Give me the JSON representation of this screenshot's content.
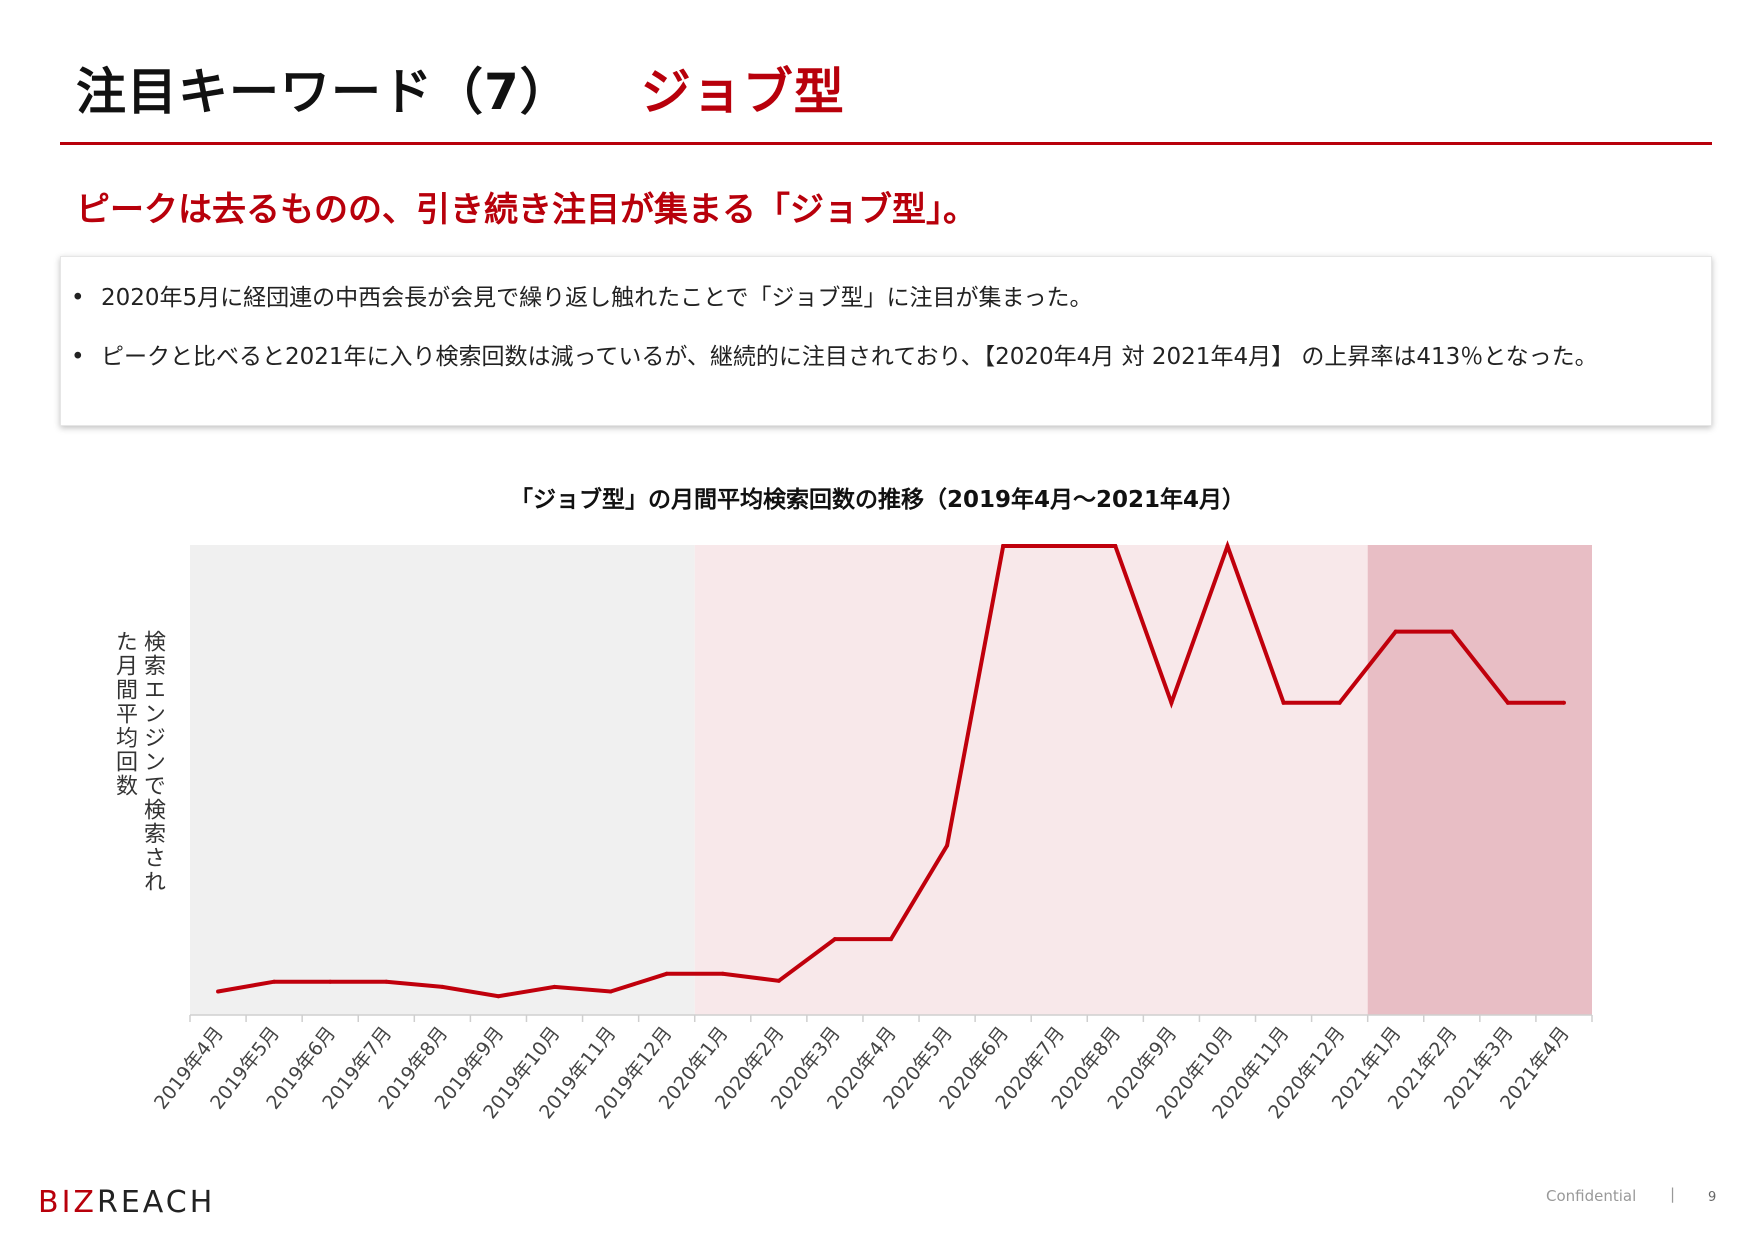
{
  "header": {
    "title": "注目キーワード（7）",
    "keyword": "ジョブ型",
    "subtitle": "ピークは去るものの、引き続き注目が集まる「ジョブ型」。"
  },
  "bullets": [
    "2020年5月に経団連の中西会長が会見で繰り返し触れたことで「ジョブ型」に注目が集まった。",
    "ピークと比べると2021年に入り検索回数は減っているが、継続的に注目されており、【2020年4月 対 2021年4月】 の上昇率は413％となった。"
  ],
  "chart_data": {
    "type": "line",
    "title": "「ジョブ型」の月間平均検索回数の推移（2019年4月〜2021年4月）",
    "ylabel": "検索エンジンで検索された月間平均回数",
    "xlabel": "",
    "categories": [
      "2019年4月",
      "2019年5月",
      "2019年6月",
      "2019年7月",
      "2019年8月",
      "2019年9月",
      "2019年10月",
      "2019年11月",
      "2019年12月",
      "2020年1月",
      "2020年2月",
      "2020年3月",
      "2020年4月",
      "2020年5月",
      "2020年6月",
      "2020年7月",
      "2020年8月",
      "2020年9月",
      "2020年10月",
      "2020年11月",
      "2020年12月",
      "2021年1月",
      "2021年2月",
      "2021年3月",
      "2021年4月"
    ],
    "series": [
      {
        "values": [
          4.8,
          6.9,
          6.9,
          6.9,
          5.8,
          3.8,
          5.8,
          4.8,
          8.6,
          8.6,
          7.1,
          16.0,
          16.0,
          36.0,
          100,
          100,
          100,
          66.5,
          100,
          66.5,
          66.5,
          81.7,
          81.7,
          66.5,
          66.5
        ],
        "color": "#c0000c"
      }
    ],
    "ylim": [
      0,
      100
    ],
    "y_ticks_shown": false,
    "grid": false,
    "legend": "none",
    "shaded_ranges": [
      {
        "from": "2019年4月",
        "to": "2019年12月",
        "color": "#f0f0f0"
      },
      {
        "from": "2020年1月",
        "to": "2020年12月",
        "color": "#f8e8ea"
      },
      {
        "from": "2021年1月",
        "to": "2021年4月",
        "color": "#e8bec5"
      }
    ]
  },
  "footer": {
    "logo": "BIZREACH",
    "confidential": "Confidential",
    "separator": "|",
    "page_number": "9"
  },
  "colors": {
    "brand_red": "#b8000b",
    "line_red": "#c0000c"
  }
}
